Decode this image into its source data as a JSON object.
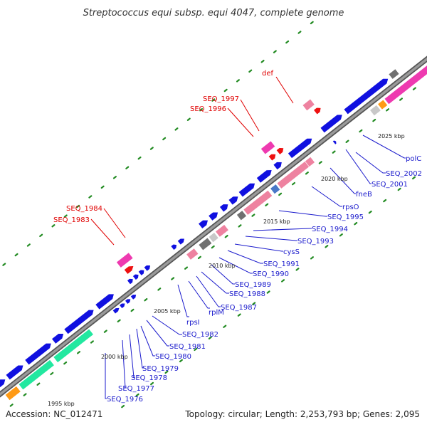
{
  "title": "Streptococcus equi subsp. equi 4047, complete genome",
  "footer": {
    "accession": "Accession: NC_012471",
    "summary": "Topology: circular; Length: 2,253,793 bp; Genes: 2,095"
  },
  "scale_labels": [
    "1995 kbp",
    "2000 kbp",
    "2005 kbp",
    "2010 kbp",
    "2015 kbp",
    "2020 kbp",
    "2025 kbp"
  ],
  "gene_labels_right": [
    "SEQ_1976",
    "SEQ_1977",
    "SEQ_1978",
    "SEQ_1979",
    "SEQ_1980",
    "SEQ_1981",
    "SEQ_1982",
    "rpsI",
    "rplM",
    "SEQ_1987",
    "SEQ_1988",
    "SEQ_1989",
    "SEQ_1990",
    "SEQ_1991",
    "cysS",
    "SEQ_1993",
    "SEQ_1994",
    "SEQ_1995",
    "rpsO",
    "fneB",
    "SEQ_2001",
    "SEQ_2002",
    "polC"
  ],
  "gene_labels_left": [
    "SEQ_1983",
    "SEQ_1984",
    "SEQ_1996",
    "SEQ_1997",
    "def"
  ],
  "colors": {
    "backbone": "#8c8c8c",
    "forward_cds": "#1010e0",
    "pink_cds": "#ee82a0",
    "magenta_cds": "#ee3ab0",
    "red_cds": "#ee1010",
    "green_cds": "#22e8a0",
    "orange_cds": "#ff9a14",
    "grey_cds": "#707070",
    "tick_green": "#228b22",
    "label_blue": "#1a1acc",
    "label_red": "#e00000"
  }
}
